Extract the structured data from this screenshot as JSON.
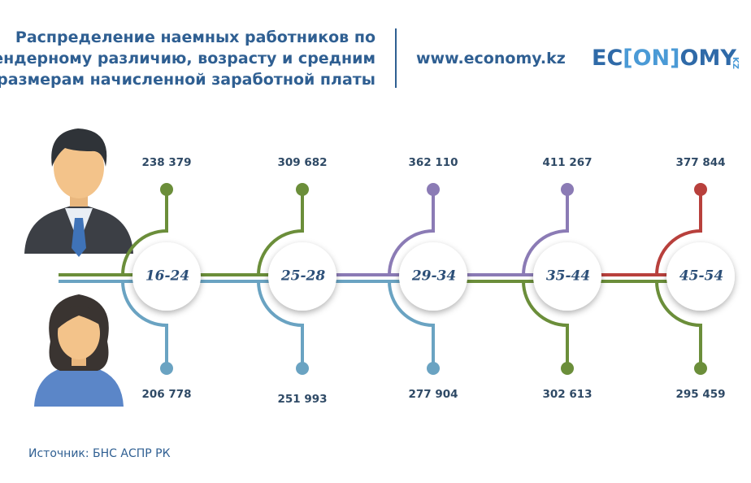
{
  "header": {
    "title": [
      "Распределение наемных работников по",
      "гендерному различию, возрасту и средним",
      "размерам начисленной заработной платы"
    ],
    "url": "www.economy.kz",
    "logo": {
      "left": "EC",
      "middle": "[ON]",
      "right": "OMY",
      "suffix": "KZ"
    }
  },
  "groups": [
    {
      "age": "16-24",
      "men": "238 379",
      "women": "206 778",
      "men_color": "#6b8e3a",
      "women_color": "#6aa3c2"
    },
    {
      "age": "25-28",
      "men": "309 682",
      "women": "251 993",
      "men_color": "#6b8e3a",
      "women_color": "#6aa3c2"
    },
    {
      "age": "29-34",
      "men": "362 110",
      "women": "277 904",
      "men_color": "#8b7bb5",
      "women_color": "#6aa3c2"
    },
    {
      "age": "35-44",
      "men": "411 267",
      "women": "302 613",
      "men_color": "#8b7bb5",
      "women_color": "#6b8e3a"
    },
    {
      "age": "45-54",
      "men": "377 844",
      "women": "295 459",
      "men_color": "#b8403c",
      "women_color": "#6b8e3a"
    }
  ],
  "footer": {
    "source": "Источник: БНС АСПР РК"
  }
}
